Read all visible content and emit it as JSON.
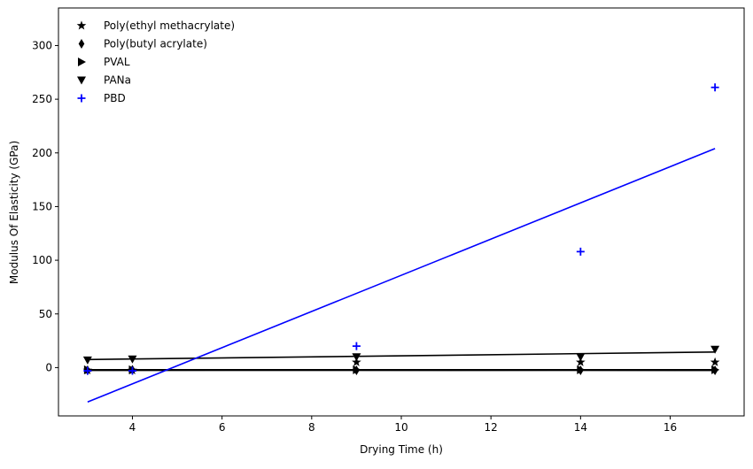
{
  "chart_data": {
    "type": "scatter",
    "title": "",
    "xlabel": "Drying Time (h)",
    "ylabel": "Modulus Of Elasticity (GPa)",
    "xlim": [
      2.35,
      17.65
    ],
    "ylim": [
      -45,
      335
    ],
    "xticks": [
      4,
      6,
      8,
      10,
      12,
      14,
      16
    ],
    "yticks": [
      0,
      50,
      100,
      150,
      200,
      250,
      300
    ],
    "grid": false,
    "legend_position": "top-left",
    "series": [
      {
        "name": "Poly(ethyl methacrylate)",
        "marker": "star",
        "color": "#000000",
        "x": [
          3,
          4,
          9,
          14,
          17
        ],
        "y": [
          -2.5,
          -2.5,
          5,
          5,
          5
        ],
        "fit": {
          "x": [
            3,
            17
          ],
          "y": [
            -2.6,
            -2.4
          ]
        }
      },
      {
        "name": "Poly(butyl acrylate)",
        "marker": "thin_diamond",
        "color": "#000000",
        "x": [
          3,
          4,
          9,
          14,
          17
        ],
        "y": [
          -2.5,
          -2.0,
          -2.5,
          -2.5,
          -2.5
        ],
        "fit": {
          "x": [
            3,
            17
          ],
          "y": [
            -2.3,
            -2.6
          ]
        }
      },
      {
        "name": "PVAL",
        "marker": "triangle_right",
        "color": "#000000",
        "x": [
          3,
          4,
          9,
          14,
          17
        ],
        "y": [
          -2.0,
          -2.0,
          -2.0,
          -2.0,
          -2.0
        ],
        "fit": {
          "x": [
            3,
            17
          ],
          "y": [
            -2.0,
            -2.0
          ]
        }
      },
      {
        "name": "PANa",
        "marker": "triangle_down",
        "color": "#000000",
        "x": [
          3,
          4,
          9,
          14,
          17
        ],
        "y": [
          7,
          8,
          10,
          10,
          17
        ],
        "fit": {
          "x": [
            3,
            17
          ],
          "y": [
            7.5,
            14.5
          ]
        }
      },
      {
        "name": "PBD",
        "marker": "plus",
        "color": "#0000ff",
        "x": [
          3,
          4,
          9,
          14,
          17
        ],
        "y": [
          -3,
          -3,
          20,
          108,
          261
        ],
        "fit": {
          "x": [
            3,
            17
          ],
          "y": [
            -32,
            204
          ]
        }
      }
    ]
  }
}
